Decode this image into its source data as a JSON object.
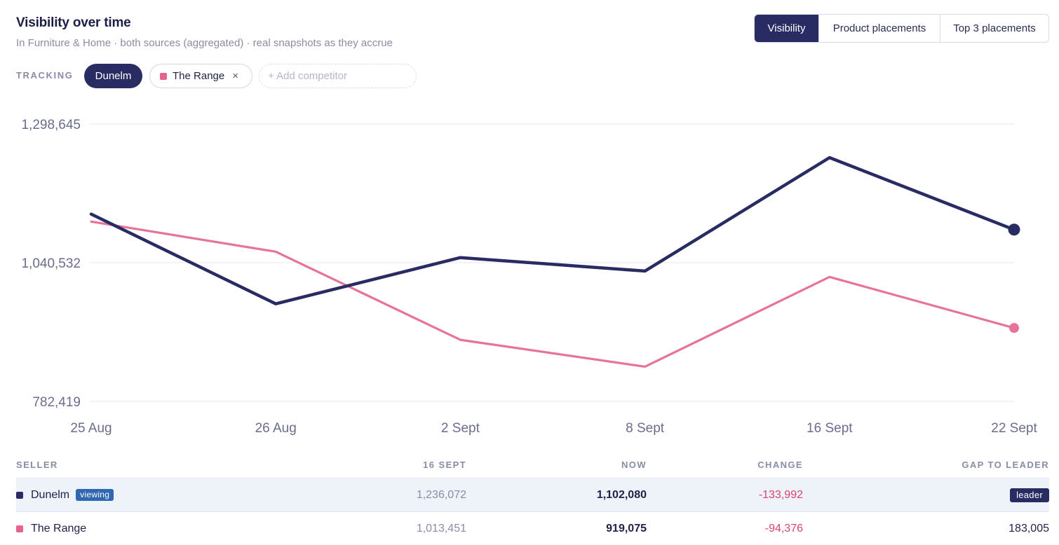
{
  "header": {
    "title": "Visibility over time",
    "subtitle": "In Furniture & Home · both sources (aggregated) · real snapshots as they accrue"
  },
  "tabs": [
    {
      "label": "Visibility",
      "active": true
    },
    {
      "label": "Product placements",
      "active": false
    },
    {
      "label": "Top 3 placements",
      "active": false
    }
  ],
  "tracking": {
    "label": "TRACKING",
    "chips": [
      {
        "label": "Dunelm",
        "primary": true
      },
      {
        "label": "The Range",
        "color": "#e8628f",
        "remove_icon": "close-icon",
        "remove_glyph": "×"
      }
    ],
    "add_placeholder": "+ Add competitor"
  },
  "chart_data": {
    "type": "line",
    "x": [
      "25 Aug",
      "26 Aug",
      "2 Sept",
      "8 Sept",
      "16 Sept",
      "22 Sept"
    ],
    "yticks": [
      "1,298,645",
      "1,040,532",
      "782,419"
    ],
    "ylim": [
      782419,
      1298645
    ],
    "grid": true,
    "series": [
      {
        "name": "Dunelm",
        "color": "#282c63",
        "values": [
          1131000,
          964000,
          1050000,
          1025000,
          1236072,
          1102080
        ]
      },
      {
        "name": "The Range",
        "color": "#e8739a",
        "values": [
          1117000,
          1061000,
          897000,
          847000,
          1014000,
          919075
        ]
      }
    ]
  },
  "table": {
    "columns": {
      "seller": "SELLER",
      "prev": "16 SEPT",
      "now": "NOW",
      "change": "CHANGE",
      "gap": "GAP TO LEADER"
    },
    "rows": [
      {
        "seller": "Dunelm",
        "color": "#282c63",
        "badge": "viewing",
        "prev": "1,236,072",
        "now": "1,102,080",
        "change": "-133,992",
        "gap": "leader"
      },
      {
        "seller": "The Range",
        "color": "#e8628f",
        "badge": "",
        "prev": "1,013,451",
        "now": "919,075",
        "change": "-94,376",
        "gap": "183,005"
      }
    ]
  }
}
